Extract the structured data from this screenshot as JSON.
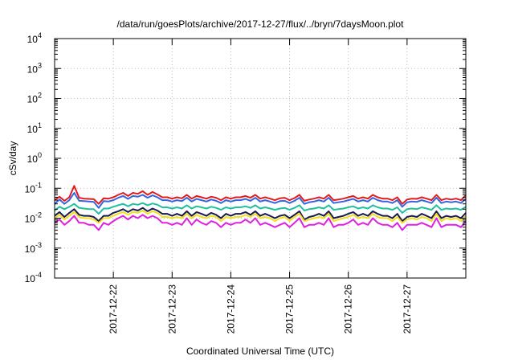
{
  "chart_data": {
    "type": "line",
    "title": "/data/run/goesPlots/archive/2017-12-27/flux/../bryn/7daysMoon.plot",
    "xlabel": "Coordinated Universal Time (UTC)",
    "ylabel": "cSv/day",
    "yscale": "log",
    "ylim": [
      0.0001,
      10000
    ],
    "xlim": [
      "2017-12-21 00:00",
      "2017-12-28 00:00"
    ],
    "grid": true,
    "x_ticks": [
      "2017-12-22",
      "2017-12-23",
      "2017-12-24",
      "2017-12-25",
      "2017-12-26",
      "2017-12-27"
    ],
    "y_ticks": [
      {
        "value": 0.0001,
        "base": "10",
        "exp": "-4"
      },
      {
        "value": 0.001,
        "base": "10",
        "exp": "-3"
      },
      {
        "value": 0.01,
        "base": "10",
        "exp": "-2"
      },
      {
        "value": 0.1,
        "base": "10",
        "exp": "-1"
      },
      {
        "value": 1,
        "base": "10",
        "exp": "0"
      },
      {
        "value": 10,
        "base": "10",
        "exp": "1"
      },
      {
        "value": 100,
        "base": "10",
        "exp": "2"
      },
      {
        "value": 1000,
        "base": "10",
        "exp": "3"
      },
      {
        "value": 10000,
        "base": "10",
        "exp": "4"
      }
    ],
    "x": [
      "2017-12-21 00:00",
      "2017-12-21 02:00",
      "2017-12-21 04:00",
      "2017-12-21 06:00",
      "2017-12-21 08:00",
      "2017-12-21 10:00",
      "2017-12-21 12:00",
      "2017-12-21 14:00",
      "2017-12-21 16:00",
      "2017-12-21 18:00",
      "2017-12-21 20:00",
      "2017-12-21 22:00",
      "2017-12-22 00:00",
      "2017-12-22 02:00",
      "2017-12-22 04:00",
      "2017-12-22 06:00",
      "2017-12-22 08:00",
      "2017-12-22 10:00",
      "2017-12-22 12:00",
      "2017-12-22 14:00",
      "2017-12-22 16:00",
      "2017-12-22 18:00",
      "2017-12-22 20:00",
      "2017-12-22 22:00",
      "2017-12-23 00:00",
      "2017-12-23 02:00",
      "2017-12-23 04:00",
      "2017-12-23 06:00",
      "2017-12-23 08:00",
      "2017-12-23 10:00",
      "2017-12-23 12:00",
      "2017-12-23 14:00",
      "2017-12-23 16:00",
      "2017-12-23 18:00",
      "2017-12-23 20:00",
      "2017-12-23 22:00",
      "2017-12-24 00:00",
      "2017-12-24 02:00",
      "2017-12-24 04:00",
      "2017-12-24 06:00",
      "2017-12-24 08:00",
      "2017-12-24 10:00",
      "2017-12-24 12:00",
      "2017-12-24 14:00",
      "2017-12-24 16:00",
      "2017-12-24 18:00",
      "2017-12-24 20:00",
      "2017-12-24 22:00",
      "2017-12-25 00:00",
      "2017-12-25 02:00",
      "2017-12-25 04:00",
      "2017-12-25 06:00",
      "2017-12-25 08:00",
      "2017-12-25 10:00",
      "2017-12-25 12:00",
      "2017-12-25 14:00",
      "2017-12-25 16:00",
      "2017-12-25 18:00",
      "2017-12-25 20:00",
      "2017-12-25 22:00",
      "2017-12-26 00:00",
      "2017-12-26 02:00",
      "2017-12-26 04:00",
      "2017-12-26 06:00",
      "2017-12-26 08:00",
      "2017-12-26 10:00",
      "2017-12-26 12:00",
      "2017-12-26 14:00",
      "2017-12-26 16:00",
      "2017-12-26 18:00",
      "2017-12-26 20:00",
      "2017-12-26 22:00",
      "2017-12-27 00:00",
      "2017-12-27 02:00",
      "2017-12-27 04:00",
      "2017-12-27 06:00",
      "2017-12-27 08:00",
      "2017-12-27 10:00",
      "2017-12-27 12:00",
      "2017-12-27 14:00",
      "2017-12-27 16:00",
      "2017-12-27 18:00",
      "2017-12-27 20:00",
      "2017-12-27 22:00",
      "2017-12-28 00:00"
    ],
    "series": [
      {
        "color": "#e41a1c",
        "values": [
          0.04,
          0.052,
          0.038,
          0.05,
          0.12,
          0.048,
          0.045,
          0.044,
          0.043,
          0.03,
          0.046,
          0.045,
          0.05,
          0.06,
          0.07,
          0.055,
          0.07,
          0.065,
          0.08,
          0.06,
          0.075,
          0.062,
          0.05,
          0.05,
          0.045,
          0.05,
          0.046,
          0.06,
          0.045,
          0.055,
          0.05,
          0.045,
          0.052,
          0.048,
          0.04,
          0.05,
          0.045,
          0.05,
          0.05,
          0.055,
          0.048,
          0.06,
          0.045,
          0.05,
          0.045,
          0.04,
          0.046,
          0.048,
          0.04,
          0.047,
          0.06,
          0.038,
          0.042,
          0.045,
          0.05,
          0.045,
          0.06,
          0.04,
          0.042,
          0.045,
          0.05,
          0.055,
          0.045,
          0.05,
          0.045,
          0.06,
          0.05,
          0.045,
          0.045,
          0.04,
          0.05,
          0.03,
          0.042,
          0.045,
          0.044,
          0.05,
          0.045,
          0.04,
          0.06,
          0.04,
          0.045,
          0.042,
          0.045,
          0.04,
          0.058
        ]
      },
      {
        "color": "#3366e0",
        "values": [
          0.03,
          0.042,
          0.03,
          0.04,
          0.07,
          0.038,
          0.037,
          0.036,
          0.035,
          0.022,
          0.037,
          0.036,
          0.04,
          0.048,
          0.055,
          0.044,
          0.055,
          0.052,
          0.06,
          0.048,
          0.058,
          0.05,
          0.04,
          0.04,
          0.036,
          0.04,
          0.037,
          0.048,
          0.036,
          0.044,
          0.04,
          0.036,
          0.042,
          0.038,
          0.032,
          0.04,
          0.036,
          0.04,
          0.04,
          0.044,
          0.038,
          0.048,
          0.036,
          0.04,
          0.036,
          0.032,
          0.037,
          0.038,
          0.032,
          0.038,
          0.048,
          0.03,
          0.034,
          0.036,
          0.04,
          0.036,
          0.048,
          0.032,
          0.034,
          0.036,
          0.04,
          0.044,
          0.036,
          0.04,
          0.036,
          0.048,
          0.04,
          0.036,
          0.036,
          0.032,
          0.04,
          0.024,
          0.034,
          0.036,
          0.035,
          0.04,
          0.036,
          0.032,
          0.048,
          0.032,
          0.036,
          0.034,
          0.036,
          0.032,
          0.045
        ]
      },
      {
        "color": "#20c0a0",
        "values": [
          0.018,
          0.024,
          0.02,
          0.024,
          0.03,
          0.022,
          0.021,
          0.02,
          0.02,
          0.014,
          0.021,
          0.021,
          0.024,
          0.027,
          0.03,
          0.025,
          0.03,
          0.028,
          0.032,
          0.027,
          0.031,
          0.028,
          0.023,
          0.023,
          0.021,
          0.023,
          0.021,
          0.027,
          0.021,
          0.025,
          0.023,
          0.021,
          0.024,
          0.022,
          0.019,
          0.023,
          0.021,
          0.023,
          0.023,
          0.025,
          0.022,
          0.027,
          0.021,
          0.023,
          0.021,
          0.019,
          0.021,
          0.022,
          0.019,
          0.022,
          0.027,
          0.018,
          0.02,
          0.021,
          0.023,
          0.021,
          0.027,
          0.019,
          0.02,
          0.021,
          0.023,
          0.025,
          0.021,
          0.023,
          0.021,
          0.027,
          0.023,
          0.021,
          0.021,
          0.019,
          0.023,
          0.015,
          0.02,
          0.021,
          0.02,
          0.023,
          0.021,
          0.019,
          0.027,
          0.019,
          0.021,
          0.02,
          0.021,
          0.019,
          0.024
        ]
      },
      {
        "color": "#1a1a50",
        "values": [
          0.012,
          0.016,
          0.011,
          0.015,
          0.02,
          0.013,
          0.012,
          0.012,
          0.011,
          0.008,
          0.012,
          0.012,
          0.015,
          0.017,
          0.02,
          0.016,
          0.02,
          0.018,
          0.022,
          0.017,
          0.021,
          0.018,
          0.014,
          0.014,
          0.012,
          0.014,
          0.012,
          0.017,
          0.012,
          0.016,
          0.014,
          0.012,
          0.015,
          0.013,
          0.01,
          0.014,
          0.012,
          0.014,
          0.014,
          0.016,
          0.013,
          0.017,
          0.012,
          0.014,
          0.012,
          0.01,
          0.012,
          0.013,
          0.01,
          0.013,
          0.017,
          0.009,
          0.011,
          0.012,
          0.014,
          0.012,
          0.017,
          0.01,
          0.011,
          0.012,
          0.014,
          0.016,
          0.012,
          0.014,
          0.012,
          0.017,
          0.014,
          0.012,
          0.012,
          0.01,
          0.014,
          0.008,
          0.011,
          0.012,
          0.011,
          0.014,
          0.012,
          0.01,
          0.017,
          0.01,
          0.012,
          0.011,
          0.012,
          0.01,
          0.015
        ]
      },
      {
        "color": "#f0e020",
        "values": [
          0.01,
          0.013,
          0.009,
          0.012,
          0.016,
          0.011,
          0.01,
          0.01,
          0.009,
          0.007,
          0.01,
          0.01,
          0.012,
          0.014,
          0.016,
          0.013,
          0.016,
          0.015,
          0.018,
          0.014,
          0.017,
          0.015,
          0.011,
          0.011,
          0.01,
          0.011,
          0.01,
          0.014,
          0.01,
          0.013,
          0.011,
          0.01,
          0.012,
          0.011,
          0.008,
          0.011,
          0.01,
          0.011,
          0.011,
          0.013,
          0.011,
          0.014,
          0.01,
          0.011,
          0.01,
          0.008,
          0.01,
          0.011,
          0.008,
          0.011,
          0.014,
          0.008,
          0.009,
          0.01,
          0.011,
          0.01,
          0.014,
          0.008,
          0.009,
          0.01,
          0.011,
          0.013,
          0.01,
          0.011,
          0.01,
          0.014,
          0.011,
          0.01,
          0.01,
          0.008,
          0.011,
          0.007,
          0.009,
          0.01,
          0.009,
          0.011,
          0.01,
          0.008,
          0.014,
          0.008,
          0.01,
          0.009,
          0.01,
          0.008,
          0.012
        ]
      },
      {
        "color": "#e020e0",
        "values": [
          0.007,
          0.009,
          0.006,
          0.008,
          0.012,
          0.007,
          0.007,
          0.006,
          0.006,
          0.004,
          0.007,
          0.006,
          0.008,
          0.01,
          0.012,
          0.009,
          0.012,
          0.01,
          0.013,
          0.01,
          0.012,
          0.01,
          0.007,
          0.007,
          0.006,
          0.007,
          0.006,
          0.01,
          0.006,
          0.009,
          0.007,
          0.006,
          0.008,
          0.007,
          0.005,
          0.007,
          0.006,
          0.007,
          0.007,
          0.009,
          0.007,
          0.01,
          0.006,
          0.007,
          0.006,
          0.005,
          0.006,
          0.007,
          0.005,
          0.007,
          0.01,
          0.005,
          0.006,
          0.006,
          0.007,
          0.006,
          0.01,
          0.005,
          0.006,
          0.006,
          0.007,
          0.009,
          0.006,
          0.007,
          0.006,
          0.01,
          0.007,
          0.006,
          0.006,
          0.005,
          0.007,
          0.004,
          0.006,
          0.006,
          0.006,
          0.007,
          0.006,
          0.005,
          0.01,
          0.005,
          0.006,
          0.006,
          0.006,
          0.005,
          0.008
        ]
      }
    ]
  }
}
